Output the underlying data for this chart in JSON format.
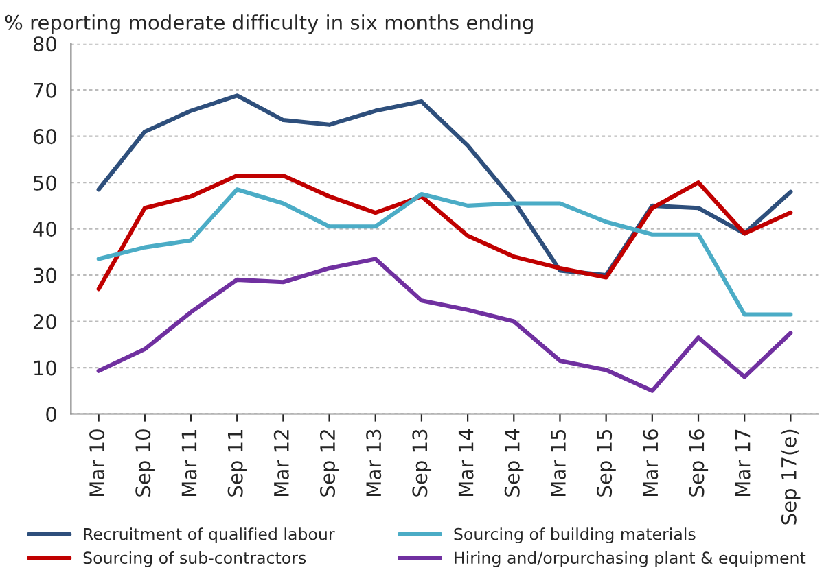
{
  "chart_data": {
    "type": "line",
    "title": "% reporting moderate difficulty in six months ending",
    "categories": [
      "Mar 10",
      "Sep 10",
      "Mar 11",
      "Sep 11",
      "Mar 12",
      "Sep 12",
      "Mar 13",
      "Sep 13",
      "Mar 14",
      "Sep 14",
      "Mar 15",
      "Sep 15",
      "Mar 16",
      "Sep 16",
      "Mar 17",
      "Sep 17(e)"
    ],
    "series": [
      {
        "name": "Recruitment of qualified labour",
        "color": "#2e4f7c",
        "values": [
          48.5,
          61,
          65.5,
          68.8,
          63.5,
          62.5,
          65.5,
          67.5,
          58,
          46,
          31,
          30,
          45,
          44.5,
          39,
          48
        ]
      },
      {
        "name": "Sourcing of sub-contractors",
        "color": "#c00000",
        "values": [
          27,
          44.5,
          47,
          51.5,
          51.5,
          47,
          43.5,
          47,
          38.5,
          34,
          31.5,
          29.5,
          44.5,
          50,
          39,
          43.5
        ]
      },
      {
        "name": "Sourcing of building materials",
        "color": "#4bacc6",
        "values": [
          33.5,
          36,
          37.5,
          48.5,
          45.5,
          40.5,
          40.5,
          47.5,
          45,
          45.5,
          45.5,
          41.5,
          38.8,
          38.8,
          21.5,
          21.5
        ]
      },
      {
        "name": "Hiring and/orpurchasing plant & equipment",
        "color": "#7030a0",
        "values": [
          9.3,
          14,
          22,
          29,
          28.5,
          31.5,
          33.5,
          24.5,
          22.5,
          20,
          11.5,
          9.5,
          5,
          16.5,
          8,
          17.5
        ]
      }
    ],
    "ylim": [
      0,
      80
    ],
    "yticks": [
      0,
      10,
      20,
      30,
      40,
      50,
      60,
      70,
      80
    ],
    "grid": "y",
    "legend": "bottom"
  }
}
